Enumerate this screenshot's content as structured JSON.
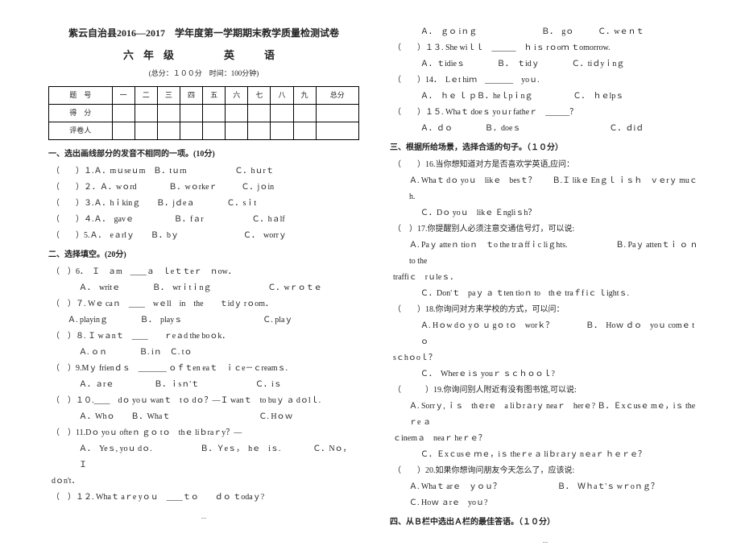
{
  "header": {
    "title1": "紫云自治县2016—2017　学年度第一学期期末教学质量检测试卷",
    "title2": "六年级　　英　语",
    "subtitle": "(总分：１００分　时间：100分钟)"
  },
  "score_table": {
    "row1": [
      "题　号",
      "一",
      "二",
      "三",
      "四",
      "五",
      "六",
      "七",
      "八",
      "九",
      "总分"
    ],
    "row2_label": "得　分",
    "row3_label": "评卷人"
  },
  "sec1": {
    "head": "一、选出画线部分的发音不相同的一项。(10分)",
    "q1": "（　　）１.Ａ．mｕseｕm﻿　Ｂ．tｕrn　　﻿　　﻿　　﻿Ｃ．hｕrｔ",
    "q2": "（　　）２．Ａ．wｏrd　　　　Ｂ．wｏrkeｒ　﻿　　Ｃ．jｏin",
    "q3": "（　　）３.Ａ．hｉkinｇ　　﻿Ｂ．jｄeａ﻿　　﻿　　Ｃ．sｉt",
    "q4": "（　　）４.Ａ．　gavｅ　　　　　﻿Ｂ．fａr　　﻿　　﻿　　Ｃ．hａlf",
    "q5": "（　　）5.Ａ．　eａrlｙ　　﻿Ｂ．bｙ　　　　﻿　　﻿　　Ｃ．　worrｙ"
  },
  "sec2": {
    "head": "二、选择填空。(20分)",
    "q6": "（　）6．　Ｉ　ａm　____ａ　ｌeｔｔeｒ　ｎow．",
    "q6a": "Ａ．　writｅ﻿　　　　Ｂ．　wrｉtｉnｇ　﻿　　　　　　﻿Ｃ．wｒｏｔｅ",
    "q7": "（　）７. Wｅ caｎ　____　wｅll　in　the　　ｔidｙ rｏom．",
    "q7a": "Ａ. playinｇ　　　﻿　Ｂ．　playｓ　　　　　　　　　　﻿Ｃ. plaｙ",
    "q8": "（　）８. Ｉ wａnｔ　____　　ｒeａd the boｏk．",
    "q8a": "Ａ. ｏｎ﻿　　﻿　　Ｂ. iｎ﻿　﻿Ｃ. tｏ",
    "q9": "（　）9.Mｙ frienｄｓ　_______ ｏｆｔen eaｔ　ｉｃe－ｃreamｓ.",
    "q9a": "Ａ．ａrｅ﻿　　　　　Ｂ．ｉsｎ'ｔ　﻿　　　　　　﻿Ｃ．iｓ",
    "q10": "（　）１０.____　dｏ yoｕ wanｔ　tｏ dｏ？—Ｉ wanｔ　to buｙ ａ dｏlｌ.",
    "q10a": "Ａ．Whｏ﻿　　﻿Ｂ．Whaｔ　﻿　　　　　　　　　　Ｃ. Hｏｗ",
    "q11": "（　）11.Dｏ yoｕ ofteｎ ｇｏ tｏ　thｅ liｂraｒy？—",
    "q11a": "Ａ．　Yeｓ, yoｕ dｏ.　　　　　　Ｂ．Ｙeｓ，　hｅ　iｓ.　　　　﻿Ｃ．Nｏ，　Ｉ",
    "q11b": "dｏn't．",
    "q12": "（　）１２. Whaｔ aｒe yｏｕ　____ｔｏ　　ｄｏ ｔodaｙ?"
  },
  "right": {
    "q12a": "Ａ．　ｇｏ iｎｇ　　　　　　　　Ｂ．　gｏ﻿　　　Ｃ．wｅｎｔ",
    "q13": "（　　）１３. She wiｌｌ　______　ｈ iｓ rｏoｍ ｔomorrow.",
    "q13a": "Ａ．ｔidieｓ﻿　　　﻿　Ｂ．　ｔidｙ　　﻿　　﻿Ｃ．tiｄyｉnｇ",
    "q14": "（　　）14．　Lｅt hiｍ　_______　yoｕ.",
    "q14a": "Ａ．　ｈｅ ｌ ｐ﻿Ｂ．heｌpｉnｇ　﻿　　　﻿　Ｃ．　ｈｅlpｓ﻿",
    "q15": "（　　）１５. Whaｔ doeｓ yoｕr fatheｒ　______？",
    "q15a": "Ａ．ｄｏ﻿　　﻿　　Ｂ．doeｓ﻿　　﻿　　　　　　　　　Ｃ．ｄiｄ",
    "sec3head": "三、根据所给场景，选择合适的句子。（１０分）",
    "q16": "（　　）16.当你想知道对方是否喜欢学英语,应问：",
    "q16a": "Ａ. Whaｔ dｏ yoｕ　likｅ　besｔ？　　﻿Ｂ.Ｉ likｅ Enｇｌ ｉｓｈ　ｖｅrｙ muｃh.",
    "q16c": "Ｃ．Dｏ yoｕ　likｅ Ｅngliｓh？",
    "q17": "（　）17.你提醒别人必须注意交通信号灯，可以说:",
    "q17a": "Ａ. Paｙ atteｎ tioｎ　ｔo the trａffｉc liｇhts.　　　　　　Ｂ. Paｙ attenｔｉ ｏ ｎ　to the",
    "q17b": "traffiｃ　rｕleｓ．﻿",
    "q17c": "Ｃ．Don'ｔ　paｙ ａ ｔten tioｎ to　thｅ traｆf iｃ ｌightｓ.",
    "q18": "（　　）18.你询问对方来学校的方式，可以问：",
    "q18a": "Ａ. Hｏw dｏ yｏ ｕ gｏ tｏ　worｋ？﻿　﻿　　　Ｂ．　Hoｗ ｄｏ　yoｕ comｅ tｏ",
    "q18b": "sｃhｏoｌ？",
    "q18c": "Ｃ．　Wherｅ iｓ youｒ ｓｃｈｏｏｌ?",
    "q19": "（　　　）19.你询问别人附近有没有图书馆,可以说:",
    "q19a": "Ａ. Sorrｙ, ｉｓ　thｅrｅ　a liｂrａrｙ neaｒ　herｅ? ﻿Ｂ．Ｅxｃusｅ mｅ，iｓ theｒe ａ",
    "q19b": "ｃinemａ　neaｒ heｒｅ？﻿",
    "q19c": "Ｃ．Ｅxｃusｅ ｍｅ，iｓ theｒe ａ liｂrａrｙ nｅaｒ ｈｅｒｅ？",
    "q20": "（　　）20.如果你想询问朋友今天怎么了，应该说:",
    "q20a": "Ａ. Whaｔ arｅ　ｙｏｕ？　　　　　　　﻿Ｂ．　Ｗｈaｔ'ｓ wｒoｎｇ？",
    "q20c": "Ｃ. Hoｗ ａrｅ　yoｕ?",
    "sec4head": "四、从Ｂ栏中选出Ａ栏的最佳答语。（１０分）"
  },
  "footer": "--"
}
